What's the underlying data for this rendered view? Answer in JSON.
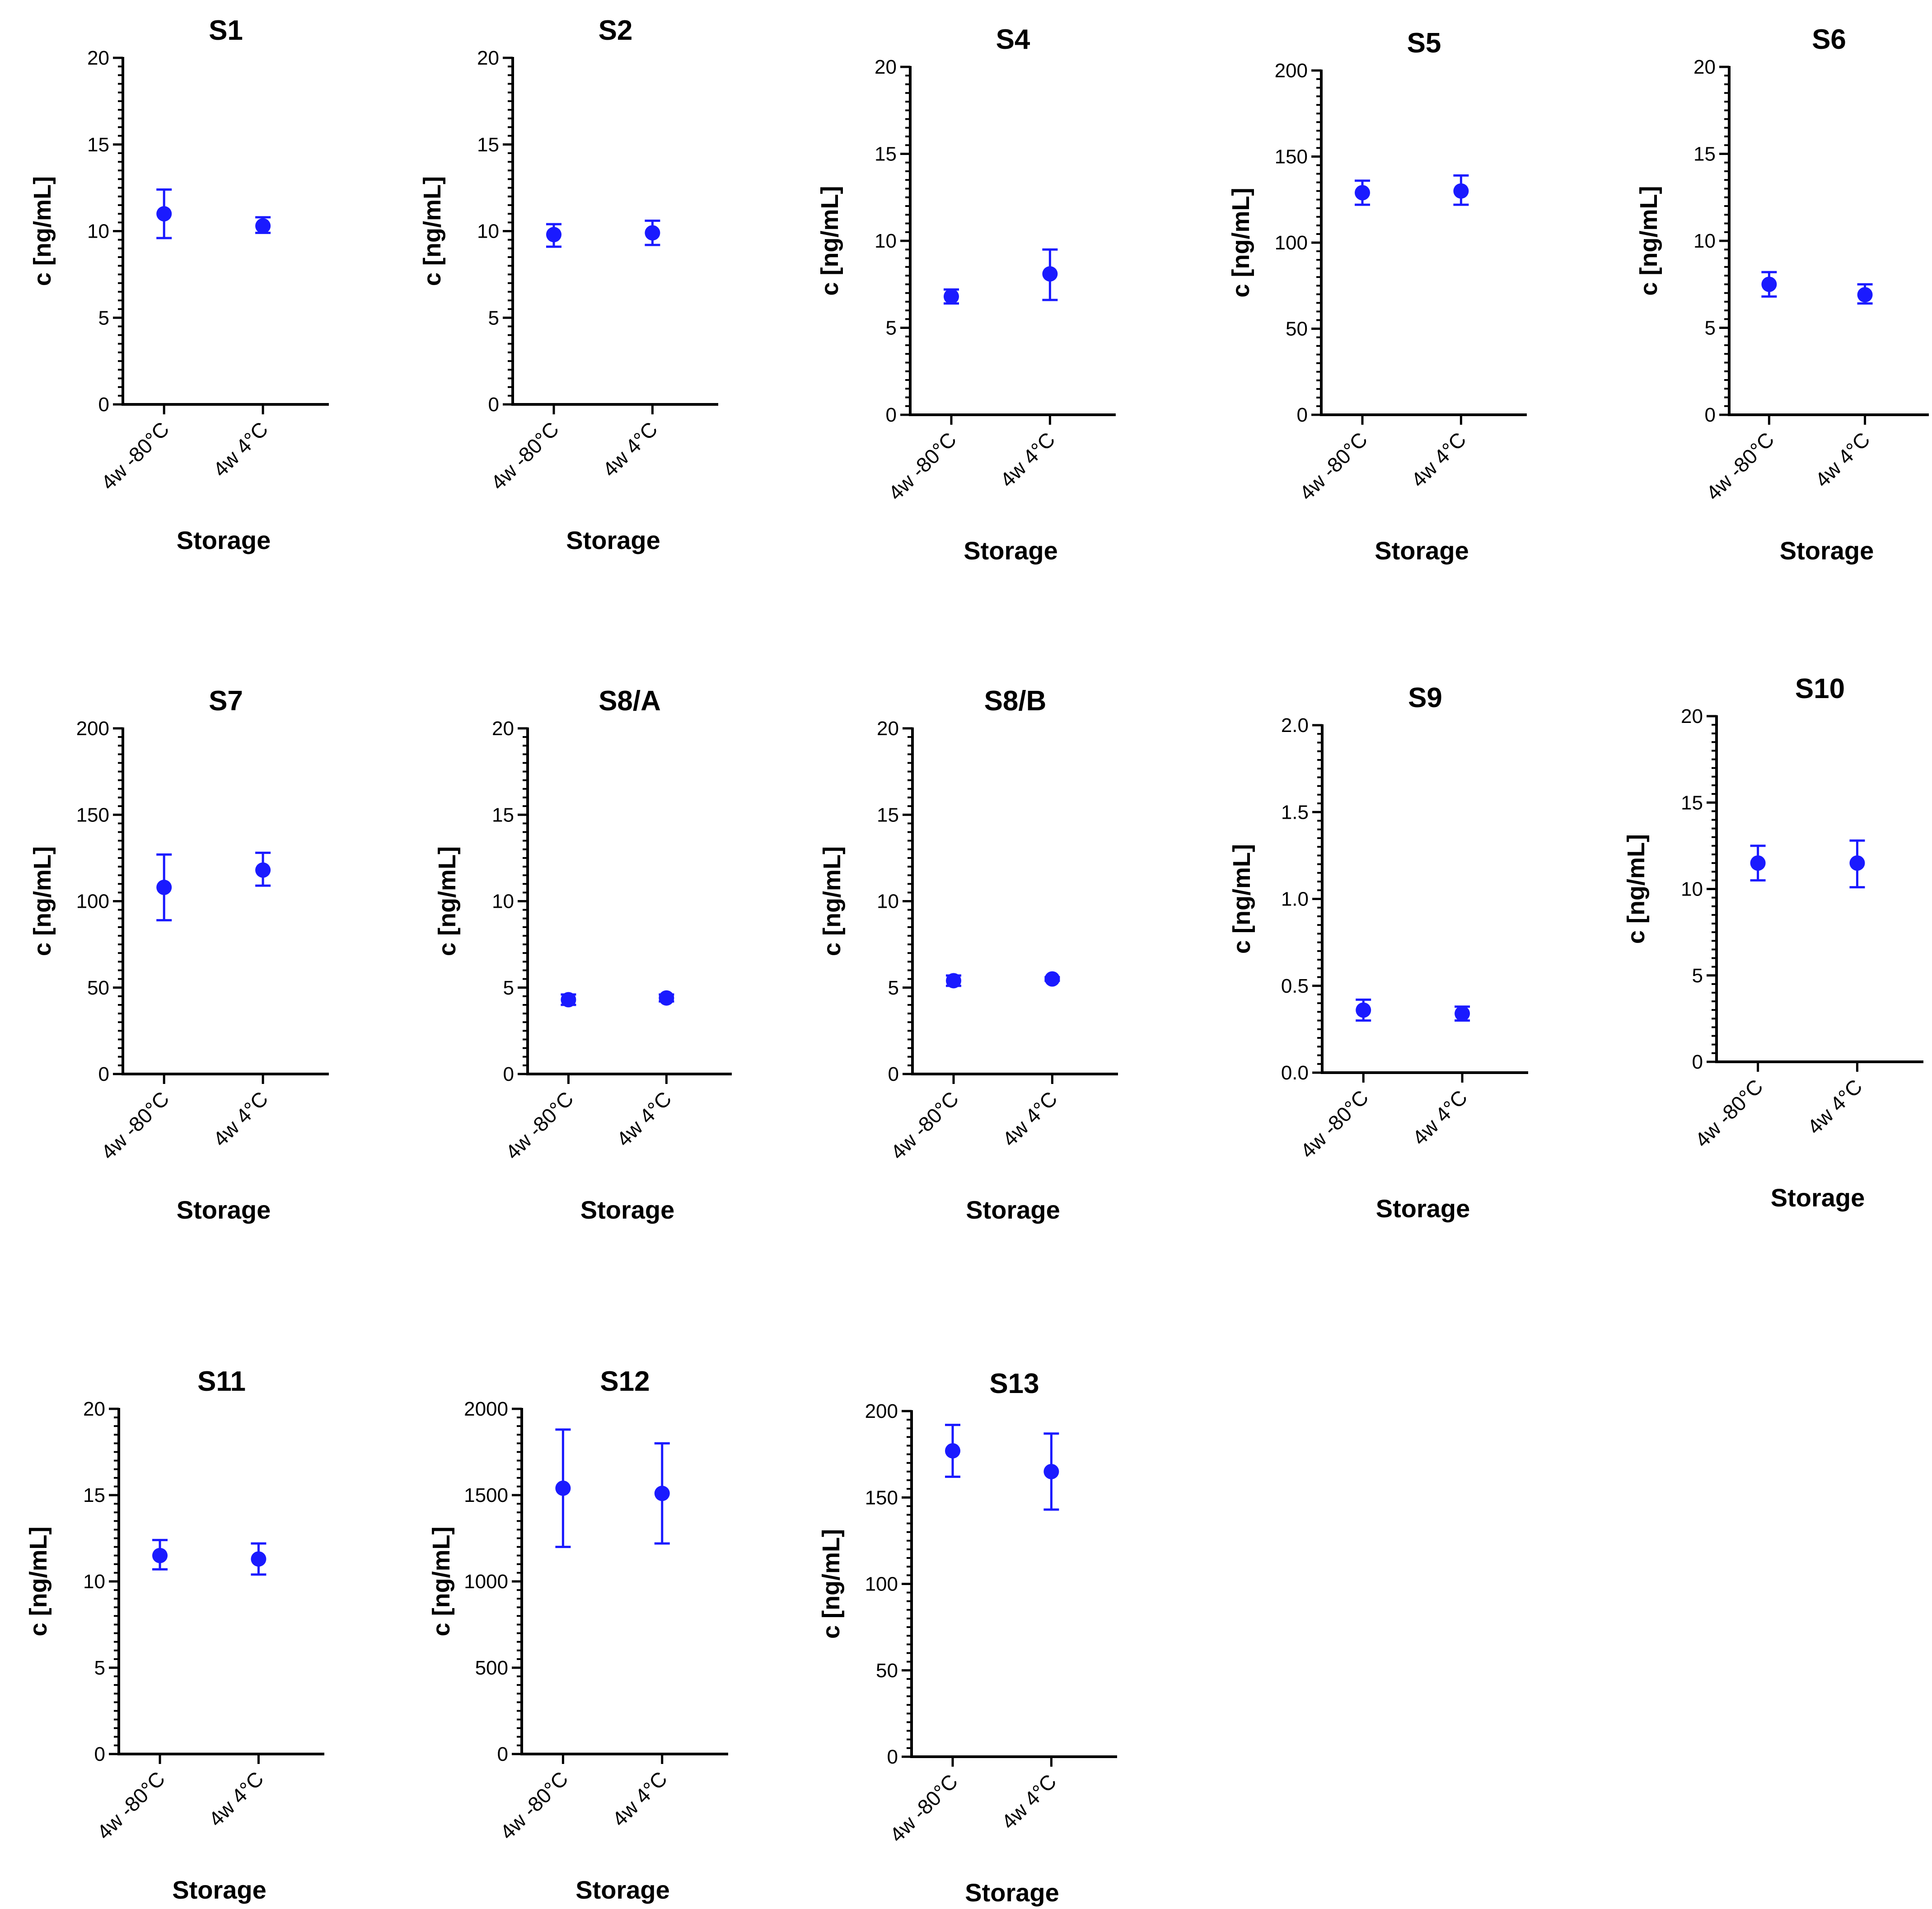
{
  "chart_data": [
    {
      "type": "scatter",
      "title": "S1",
      "xlabel": "Storage",
      "ylabel": "c [ng/mL]",
      "categories": [
        "4w -80°C",
        "4w 4°C"
      ],
      "ylim": [
        0,
        20
      ],
      "yticks": [
        "0",
        "5",
        "10",
        "15",
        "20"
      ],
      "values": [
        11.0,
        10.3
      ],
      "err_low": [
        9.6,
        9.9
      ],
      "err_high": [
        12.4,
        10.8
      ]
    },
    {
      "type": "scatter",
      "title": "S2",
      "xlabel": "Storage",
      "ylabel": "c [ng/mL]",
      "categories": [
        "4w -80°C",
        "4w 4°C"
      ],
      "ylim": [
        0,
        20
      ],
      "yticks": [
        "0",
        "5",
        "10",
        "15",
        "20"
      ],
      "values": [
        9.8,
        9.9
      ],
      "err_low": [
        9.1,
        9.2
      ],
      "err_high": [
        10.4,
        10.6
      ]
    },
    {
      "type": "scatter",
      "title": "S4",
      "xlabel": "Storage",
      "ylabel": "c [ng/mL]",
      "categories": [
        "4w -80°C",
        "4w 4°C"
      ],
      "ylim": [
        0,
        20
      ],
      "yticks": [
        "0",
        "5",
        "10",
        "15",
        "20"
      ],
      "values": [
        6.8,
        8.1
      ],
      "err_low": [
        6.4,
        6.6
      ],
      "err_high": [
        7.2,
        9.5
      ]
    },
    {
      "type": "scatter",
      "title": "S5",
      "xlabel": "Storage",
      "ylabel": "c [ng/mL]",
      "categories": [
        "4w -80°C",
        "4w 4°C"
      ],
      "ylim": [
        0,
        200
      ],
      "yticks": [
        "0",
        "50",
        "100",
        "150",
        "200"
      ],
      "values": [
        129,
        130
      ],
      "err_low": [
        122,
        122
      ],
      "err_high": [
        136,
        139
      ]
    },
    {
      "type": "scatter",
      "title": "S6",
      "xlabel": "Storage",
      "ylabel": "c [ng/mL]",
      "categories": [
        "4w -80°C",
        "4w 4°C"
      ],
      "ylim": [
        0,
        20
      ],
      "yticks": [
        "0",
        "5",
        "10",
        "15",
        "20"
      ],
      "values": [
        7.5,
        6.9
      ],
      "err_low": [
        6.8,
        6.4
      ],
      "err_high": [
        8.2,
        7.5
      ]
    },
    {
      "type": "scatter",
      "title": "S7",
      "xlabel": "Storage",
      "ylabel": "c [ng/mL]",
      "categories": [
        "4w -80°C",
        "4w 4°C"
      ],
      "ylim": [
        0,
        200
      ],
      "yticks": [
        "0",
        "50",
        "100",
        "150",
        "200"
      ],
      "values": [
        108,
        118
      ],
      "err_low": [
        89,
        109
      ],
      "err_high": [
        127,
        128
      ]
    },
    {
      "type": "scatter",
      "title": "S8/A",
      "xlabel": "Storage",
      "ylabel": "c [ng/mL]",
      "categories": [
        "4w -80°C",
        "4w 4°C"
      ],
      "ylim": [
        0,
        20
      ],
      "yticks": [
        "0",
        "5",
        "10",
        "15",
        "20"
      ],
      "values": [
        4.3,
        4.4
      ],
      "err_low": [
        4.0,
        4.2
      ],
      "err_high": [
        4.6,
        4.6
      ]
    },
    {
      "type": "scatter",
      "title": "S8/B",
      "xlabel": "Storage",
      "ylabel": "c [ng/mL]",
      "categories": [
        "4w -80°C",
        "4w 4°C"
      ],
      "ylim": [
        0,
        20
      ],
      "yticks": [
        "0",
        "5",
        "10",
        "15",
        "20"
      ],
      "values": [
        5.4,
        5.5
      ],
      "err_low": [
        5.1,
        5.4
      ],
      "err_high": [
        5.7,
        5.6
      ]
    },
    {
      "type": "scatter",
      "title": "S9",
      "xlabel": "Storage",
      "ylabel": "c [ng/mL]",
      "categories": [
        "4w -80°C",
        "4w 4°C"
      ],
      "ylim": [
        0,
        2.0
      ],
      "yticks": [
        "0.0",
        "0.5",
        "1.0",
        "1.5",
        "2.0"
      ],
      "values": [
        0.36,
        0.34
      ],
      "err_low": [
        0.3,
        0.3
      ],
      "err_high": [
        0.42,
        0.38
      ]
    },
    {
      "type": "scatter",
      "title": "S10",
      "xlabel": "Storage",
      "ylabel": "c [ng/mL]",
      "categories": [
        "4w -80°C",
        "4w 4°C"
      ],
      "ylim": [
        0,
        20
      ],
      "yticks": [
        "0",
        "5",
        "10",
        "15",
        "20"
      ],
      "values": [
        11.5,
        11.5
      ],
      "err_low": [
        10.5,
        10.1
      ],
      "err_high": [
        12.5,
        12.8
      ]
    },
    {
      "type": "scatter",
      "title": "S11",
      "xlabel": "Storage",
      "ylabel": "c [ng/mL]",
      "categories": [
        "4w -80°C",
        "4w 4°C"
      ],
      "ylim": [
        0,
        20
      ],
      "yticks": [
        "0",
        "5",
        "10",
        "15",
        "20"
      ],
      "values": [
        11.5,
        11.3
      ],
      "err_low": [
        10.7,
        10.4
      ],
      "err_high": [
        12.4,
        12.2
      ]
    },
    {
      "type": "scatter",
      "title": "S12",
      "xlabel": "Storage",
      "ylabel": "c [ng/mL]",
      "categories": [
        "4w -80°C",
        "4w 4°C"
      ],
      "ylim": [
        0,
        2000
      ],
      "yticks": [
        "0",
        "500",
        "1000",
        "1500",
        "2000"
      ],
      "values": [
        1540,
        1510
      ],
      "err_low": [
        1200,
        1220
      ],
      "err_high": [
        1880,
        1800
      ]
    },
    {
      "type": "scatter",
      "title": "S13",
      "xlabel": "Storage",
      "ylabel": "c [ng/mL]",
      "categories": [
        "4w -80°C",
        "4w 4°C"
      ],
      "ylim": [
        0,
        200
      ],
      "yticks": [
        "0",
        "50",
        "100",
        "150",
        "200"
      ],
      "values": [
        177,
        165
      ],
      "err_low": [
        162,
        143
      ],
      "err_high": [
        192,
        187
      ]
    }
  ],
  "colors": {
    "marker": "#1a1aff",
    "axis": "#000000"
  }
}
